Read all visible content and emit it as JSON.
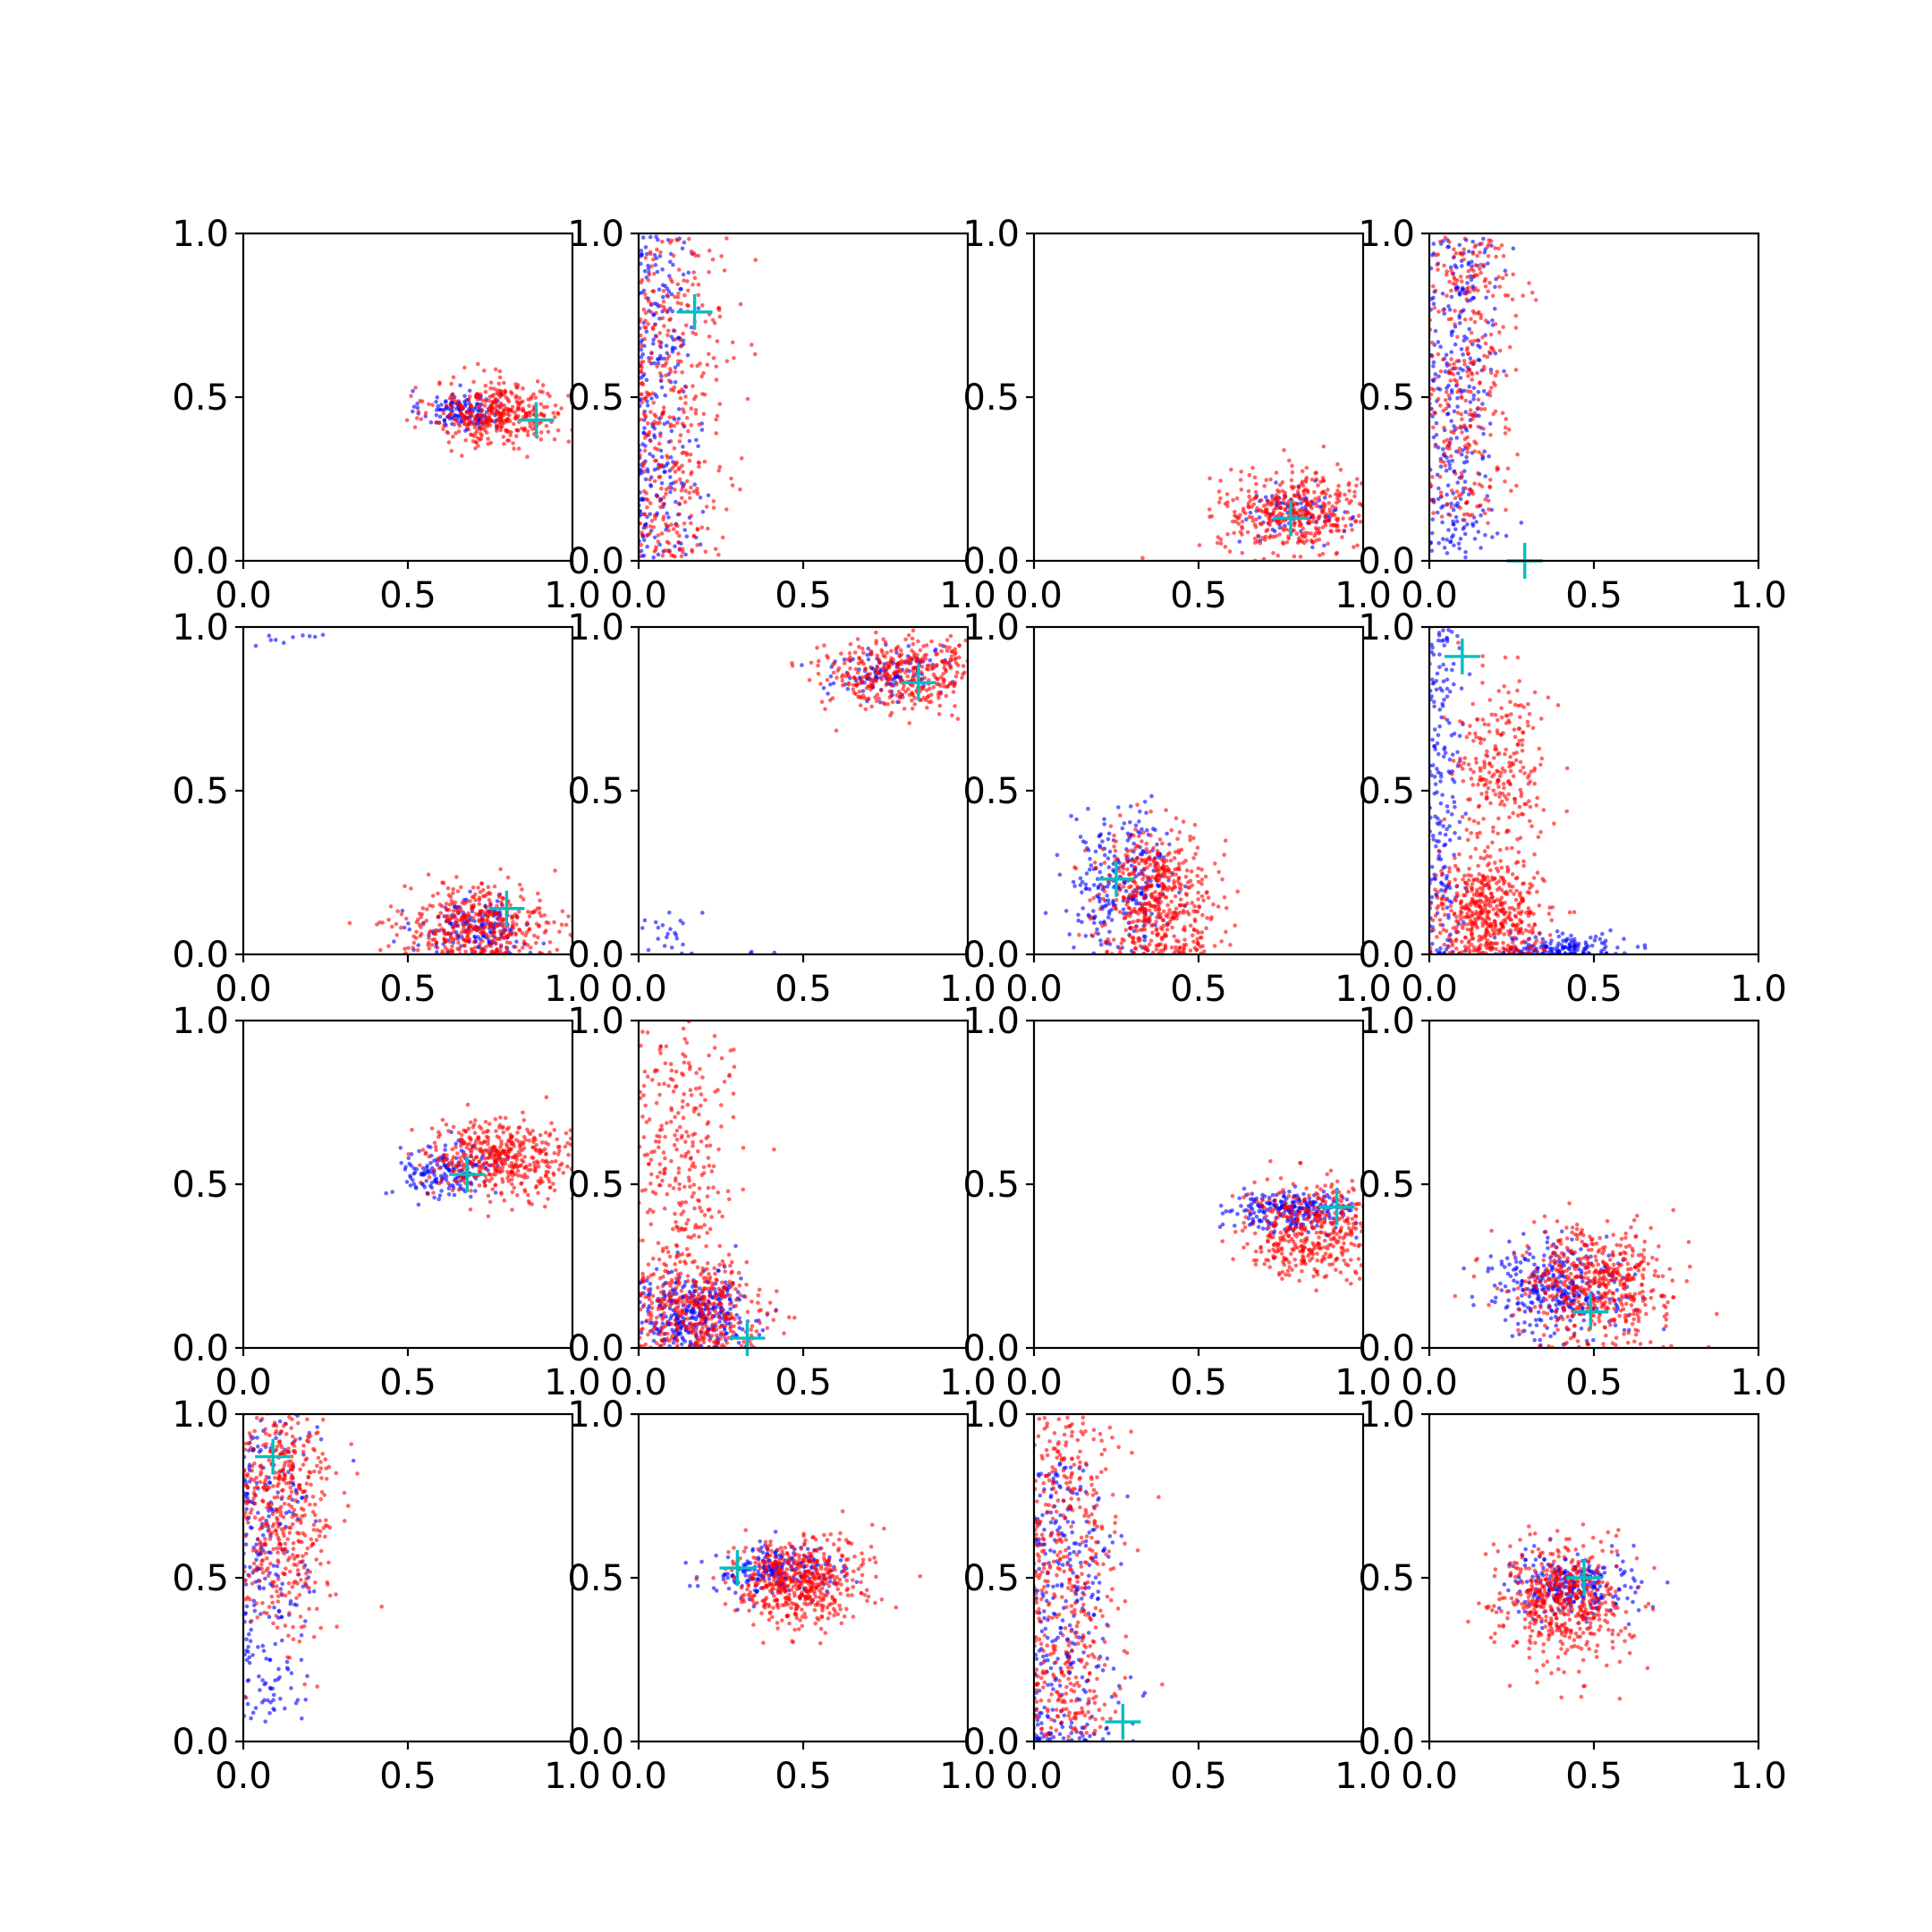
{
  "chart_data": {
    "type": "scatter",
    "layout": "4x4 grid of scatter subplots",
    "xlim": [
      0,
      1
    ],
    "ylim": [
      0,
      1
    ],
    "ticks": [
      0.0,
      0.5,
      1.0
    ],
    "tick_labels": [
      "0.0",
      "0.5",
      "1.0"
    ],
    "grid": false,
    "legend": "none",
    "colors": {
      "blue_series": "#0000ff",
      "red_series": "#ff0000",
      "marker": "#00bfbf"
    },
    "marker_style": "plus",
    "panels": [
      {
        "marker": [
          0.89,
          0.43
        ],
        "blue": {
          "n": 140,
          "cx": 0.66,
          "cy": 0.46,
          "sx": 0.06,
          "sy": 0.03
        },
        "red": [
          {
            "n": 380,
            "cx": 0.78,
            "cy": 0.45,
            "sx": 0.1,
            "sy": 0.05
          }
        ]
      },
      {
        "marker": [
          0.17,
          0.76
        ],
        "blue": {
          "n": 260,
          "cx": 0.06,
          "cy": 0.5,
          "sx": 0.06,
          "sy": 0.28,
          "dist": "uniform_y"
        },
        "red": [
          {
            "n": 380,
            "cx": 0.1,
            "cy": 0.5,
            "sx": 0.09,
            "sy": 0.28,
            "dist": "uniform_y"
          }
        ]
      },
      {
        "marker": [
          0.78,
          0.13
        ],
        "blue": {
          "n": 80,
          "cx": 0.8,
          "cy": 0.15,
          "sx": 0.08,
          "sy": 0.04
        },
        "red": [
          {
            "n": 420,
            "cx": 0.8,
            "cy": 0.15,
            "sx": 0.12,
            "sy": 0.06
          }
        ]
      },
      {
        "marker": [
          0.29,
          0.0
        ],
        "blue": {
          "n": 300,
          "cx": 0.09,
          "cy": 0.5,
          "sx": 0.06,
          "sy": 0.28,
          "dist": "uniform_y"
        },
        "red": [
          {
            "n": 320,
            "cx": 0.12,
            "cy": 0.55,
            "sx": 0.07,
            "sy": 0.25,
            "dist": "uniform_y"
          }
        ]
      },
      {
        "marker": [
          0.8,
          0.14
        ],
        "blue": {
          "n": 160,
          "cx": 0.7,
          "cy": 0.08,
          "sx": 0.08,
          "sy": 0.04
        },
        "blue_extra": [
          {
            "n": 6,
            "cx": 0.08,
            "cy": 0.96,
            "sx": 0.04,
            "sy": 0.02
          },
          {
            "n": 4,
            "cx": 0.22,
            "cy": 0.97,
            "sx": 0.02,
            "sy": 0.01
          }
        ],
        "red": [
          {
            "n": 420,
            "cx": 0.72,
            "cy": 0.09,
            "sx": 0.12,
            "sy": 0.06
          }
        ]
      },
      {
        "marker": [
          0.85,
          0.83
        ],
        "blue": {
          "n": 120,
          "cx": 0.75,
          "cy": 0.86,
          "sx": 0.08,
          "sy": 0.04
        },
        "blue_extra": [
          {
            "n": 22,
            "cx": 0.1,
            "cy": 0.07,
            "sx": 0.05,
            "sy": 0.05
          },
          {
            "n": 3,
            "cx": 0.36,
            "cy": 0.01,
            "sx": 0.02,
            "sy": 0.01
          }
        ],
        "red": [
          {
            "n": 400,
            "cx": 0.8,
            "cy": 0.86,
            "sx": 0.12,
            "sy": 0.06
          }
        ]
      },
      {
        "marker": [
          0.25,
          0.23
        ],
        "blue": {
          "n": 260,
          "cx": 0.27,
          "cy": 0.22,
          "sx": 0.08,
          "sy": 0.1
        },
        "red": [
          {
            "n": 520,
            "cx": 0.38,
            "cy": 0.18,
            "sx": 0.09,
            "sy": 0.1
          }
        ]
      },
      {
        "marker": [
          0.1,
          0.91
        ],
        "blue": {
          "n": 200,
          "cx": 0.04,
          "cy": 0.5,
          "sx": 0.03,
          "sy": 0.3,
          "dist": "uniform_y"
        },
        "blue_extra": [
          {
            "n": 150,
            "cx": 0.4,
            "cy": 0.02,
            "sx": 0.1,
            "sy": 0.02
          }
        ],
        "red": [
          {
            "n": 480,
            "cx": 0.18,
            "cy": 0.12,
            "sx": 0.08,
            "sy": 0.08
          },
          {
            "n": 260,
            "cx": 0.22,
            "cy": 0.55,
            "sx": 0.07,
            "sy": 0.16
          }
        ]
      },
      {
        "marker": [
          0.68,
          0.53
        ],
        "blue": {
          "n": 160,
          "cx": 0.62,
          "cy": 0.54,
          "sx": 0.07,
          "sy": 0.04
        },
        "red": [
          {
            "n": 460,
            "cx": 0.78,
            "cy": 0.58,
            "sx": 0.11,
            "sy": 0.06
          }
        ]
      },
      {
        "marker": [
          0.33,
          0.03
        ],
        "blue": {
          "n": 320,
          "cx": 0.16,
          "cy": 0.1,
          "sx": 0.09,
          "sy": 0.06
        },
        "red": [
          {
            "n": 380,
            "cx": 0.18,
            "cy": 0.12,
            "sx": 0.1,
            "sy": 0.08
          },
          {
            "n": 280,
            "cx": 0.12,
            "cy": 0.6,
            "sx": 0.08,
            "sy": 0.22
          }
        ]
      },
      {
        "marker": [
          0.92,
          0.43
        ],
        "blue": {
          "n": 240,
          "cx": 0.78,
          "cy": 0.42,
          "sx": 0.09,
          "sy": 0.03
        },
        "red": [
          {
            "n": 420,
            "cx": 0.84,
            "cy": 0.36,
            "sx": 0.1,
            "sy": 0.07
          }
        ]
      },
      {
        "marker": [
          0.49,
          0.11
        ],
        "blue": {
          "n": 320,
          "cx": 0.38,
          "cy": 0.18,
          "sx": 0.1,
          "sy": 0.07
        },
        "red": [
          {
            "n": 520,
            "cx": 0.5,
            "cy": 0.19,
            "sx": 0.12,
            "sy": 0.09
          }
        ]
      },
      {
        "marker": [
          0.09,
          0.87
        ],
        "blue": {
          "n": 260,
          "cx": 0.07,
          "cy": 0.55,
          "sx": 0.07,
          "sy": 0.28,
          "dist": "uniform_y"
        },
        "red": [
          {
            "n": 480,
            "cx": 0.12,
            "cy": 0.72,
            "sx": 0.08,
            "sy": 0.2
          }
        ]
      },
      {
        "marker": [
          0.3,
          0.53
        ],
        "blue": {
          "n": 220,
          "cx": 0.4,
          "cy": 0.52,
          "sx": 0.09,
          "sy": 0.04
        },
        "red": [
          {
            "n": 520,
            "cx": 0.48,
            "cy": 0.49,
            "sx": 0.1,
            "sy": 0.07
          }
        ]
      },
      {
        "marker": [
          0.27,
          0.06
        ],
        "blue": {
          "n": 300,
          "cx": 0.1,
          "cy": 0.4,
          "sx": 0.08,
          "sy": 0.26,
          "dist": "uniform_y"
        },
        "red": [
          {
            "n": 460,
            "cx": 0.1,
            "cy": 0.5,
            "sx": 0.08,
            "sy": 0.28,
            "dist": "uniform_y"
          }
        ]
      },
      {
        "marker": [
          0.47,
          0.5
        ],
        "blue": {
          "n": 260,
          "cx": 0.44,
          "cy": 0.48,
          "sx": 0.1,
          "sy": 0.05
        },
        "red": [
          {
            "n": 520,
            "cx": 0.4,
            "cy": 0.42,
            "sx": 0.1,
            "sy": 0.09
          }
        ]
      }
    ]
  }
}
